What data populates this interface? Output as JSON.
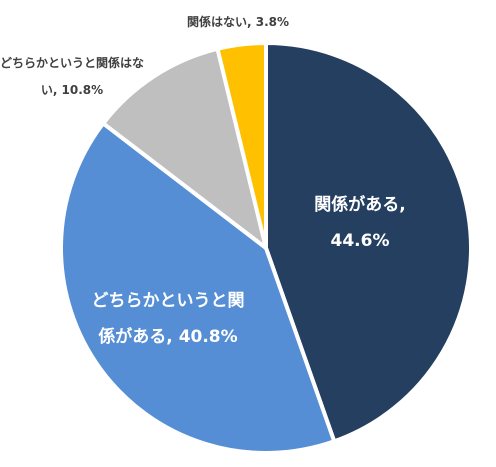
{
  "chart_data": {
    "type": "pie",
    "start_angle_deg": 0,
    "direction": "clockwise",
    "slices": [
      {
        "label": "関係がある",
        "value": 44.6,
        "value_text": "44.6%",
        "color": "#243F60",
        "label_lines": [
          "関係がある,",
          "44.6%"
        ],
        "label_position": "inside"
      },
      {
        "label": "どちらかというと関係がある",
        "value": 40.8,
        "value_text": "40.8%",
        "color": "#558ED5",
        "label_lines": [
          "どちらかというと関",
          "係がある, 40.8%"
        ],
        "label_position": "inside"
      },
      {
        "label": "どちらかというと関係はない",
        "value": 10.8,
        "value_text": "10.8%",
        "color": "#BFBFBF",
        "label_lines": [
          "どちらかというと関係はな",
          "い, 10.8%"
        ],
        "label_position": "outside"
      },
      {
        "label": "関係はない",
        "value": 3.8,
        "value_text": "3.8%",
        "color": "#FFC000",
        "label_lines": [
          "関係はない, 3.8%"
        ],
        "label_position": "outside"
      }
    ]
  }
}
